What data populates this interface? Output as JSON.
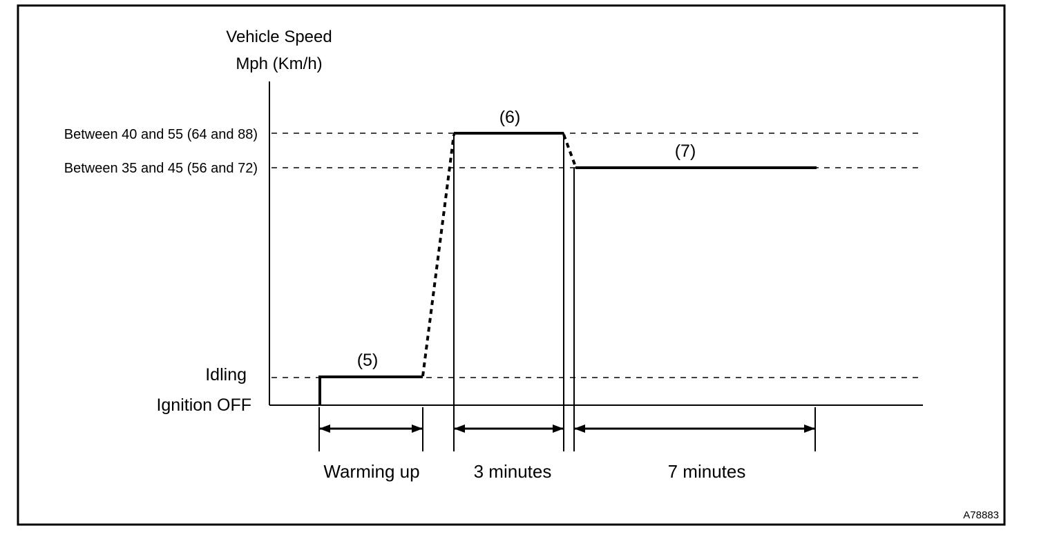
{
  "axis": {
    "y_title_line1": "Vehicle Speed",
    "y_title_line2": "Mph (Km/h)"
  },
  "levels": {
    "high": "Between 40 and 55 (64 and 88)",
    "mid": "Between 35 and 45 (56 and 72)",
    "idling": "Idling",
    "ignition_off": "Ignition OFF"
  },
  "steps": {
    "warm": "(5)",
    "high": "(6)",
    "mid": "(7)"
  },
  "durations": {
    "warm": "Warming up",
    "high": "3 minutes",
    "mid": "7 minutes"
  },
  "figure_ref": "A78883"
}
